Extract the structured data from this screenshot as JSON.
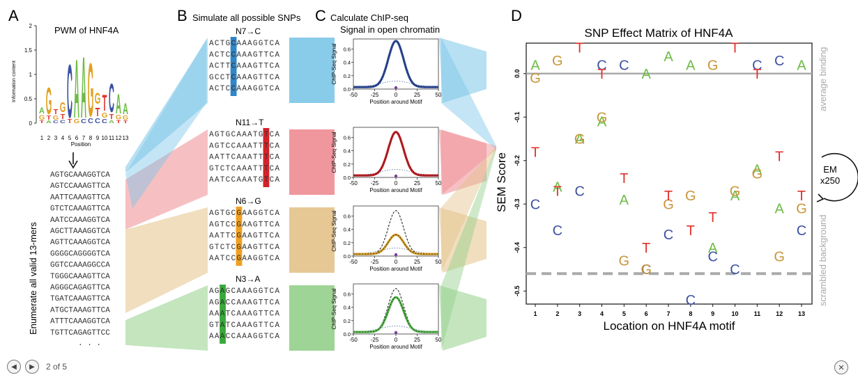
{
  "panelA": {
    "letter": "A",
    "title": "PWM of HNF4A",
    "ylabel": "Information content",
    "xlabel": "Position",
    "yticks": [
      "0",
      "0.5",
      "1",
      "1.5",
      "2"
    ],
    "xticks": [
      "1",
      "2",
      "3",
      "4",
      "5",
      "6",
      "7",
      "8",
      "9",
      "10",
      "11",
      "12",
      "13"
    ],
    "vertical_label": "Enumerate all valid 13-mers",
    "kmers": [
      "AGTGCAAAGGTCA",
      "AGTCCAAAGTTCA",
      "AATTCAAAGTTCA",
      "GTCTCAAAGTTCA",
      "AATCCAAAGGTCA",
      "AGCTTAAAGGTCA",
      "AGTTCAAAGGTCA",
      "GGGGCAGGGGTCA",
      "GGTCCAAAGGCCA",
      "TGGGCAAAGTTCA",
      "AGGGCAGAGTTCA",
      "TGATCAAAGTTCA",
      "ATGCTAAAGTTCA",
      "ATTTCAAAGGTCA",
      "TGTTCAGAGTTCC"
    ],
    "ellipsis": ". . ."
  },
  "panelB": {
    "letter": "B",
    "title": "Simulate all possible SNPs",
    "groups": [
      {
        "label": "N7→C",
        "color": "#2f86c8",
        "seqs": [
          "ACTGCAAAGGTCA",
          "ACTCCAAAGTTCA",
          "ACTTCAAAGTTCA",
          "GCCTCAAAGTTCA",
          "ACTCCAAAGGTCA"
        ]
      },
      {
        "label": "N11→T",
        "color": "#d3222a",
        "seqs": [
          "AGTGCAAATGTCA",
          "AGTCCAAATTTCA",
          "AATTCAAATTTCA",
          "GTCTCAAATTTCA",
          "AATCCAAATGTCA"
        ]
      },
      {
        "label": "N6→G",
        "color": "#f0a020",
        "seqs": [
          "AGTGCGAAGGTCA",
          "AGTCCGAAGTTCA",
          "AATTCGAAGTTCA",
          "GTCTCGAAGTTCA",
          "AATCCGAAGGTCA"
        ]
      },
      {
        "label": "N3→A",
        "color": "#3aa83a",
        "seqs": [
          "AGAGCAAAGGTCA",
          "AGACCAAAGTTCA",
          "AAATCAAAGTTCA",
          "GTATCAAAGTTCA",
          "AAACCAAAGGTCA"
        ]
      }
    ]
  },
  "panelC": {
    "letter": "C",
    "title_line1": "Calculate ChIP-seq",
    "title_line2": "Signal in open chromatin",
    "ylabel": "ChIP-Seq Signal",
    "xlabel": "Position around Motif",
    "yticks": [
      "0.0",
      "0.2",
      "0.4",
      "0.6"
    ],
    "xticks": [
      "-50",
      "-25",
      "0",
      "25",
      "50"
    ]
  },
  "panelD": {
    "letter": "D",
    "title": "SNP Effect Matrix of HNF4A",
    "ylabel": "SEM Score",
    "xlabel": "Location on HNF4A motif",
    "avg_label": "average binding",
    "bg_label": "scrambled background",
    "em_label_1": "EM",
    "em_label_2": "x250"
  },
  "chart_data": [
    {
      "type": "line",
      "title": "",
      "xlabel": "Position around Motif",
      "ylabel": "ChIP-Seq Signal",
      "xlim": [
        -50,
        50
      ],
      "ylim": [
        0,
        0.75
      ],
      "series": [
        {
          "name": "N7→C",
          "peak": 0.72,
          "reference_peak": 0.72,
          "color": "#2b4a9c"
        },
        {
          "name": "N11→T",
          "peak": 0.68,
          "reference_peak": 0.68,
          "color": "#c41e24"
        },
        {
          "name": "N6→G",
          "peak": 0.32,
          "reference_peak": 0.68,
          "color": "#d19a22"
        },
        {
          "name": "N3→A",
          "peak": 0.55,
          "reference_peak": 0.68,
          "color": "#52b548"
        }
      ]
    },
    {
      "type": "scatter",
      "title": "SNP Effect Matrix of HNF4A",
      "xlabel": "Location on HNF4A motif",
      "ylabel": "SEM Score",
      "xlim": [
        1,
        13
      ],
      "ylim": [
        -0.5,
        0.07
      ],
      "categories": [
        "1",
        "2",
        "3",
        "4",
        "5",
        "6",
        "7",
        "8",
        "9",
        "10",
        "11",
        "12",
        "13"
      ],
      "yticks": [
        0.0,
        -0.1,
        -0.2,
        -0.3,
        -0.4,
        -0.5
      ],
      "reference_lines": [
        {
          "label": "average binding",
          "y": 0.0
        },
        {
          "label": "scrambled background",
          "y": -0.46
        }
      ],
      "series": [
        {
          "name": "A",
          "color": "#6dbb45",
          "values": [
            0.02,
            -0.26,
            -0.15,
            -0.11,
            -0.29,
            0.0,
            0.04,
            0.02,
            -0.4,
            -0.28,
            -0.22,
            -0.31,
            0.02
          ]
        },
        {
          "name": "C",
          "color": "#3d51a3",
          "values": [
            -0.3,
            -0.36,
            -0.27,
            0.02,
            0.02,
            -0.45,
            -0.37,
            -0.52,
            -0.42,
            -0.45,
            0.02,
            0.03,
            -0.36
          ]
        },
        {
          "name": "G",
          "color": "#c8953a",
          "values": [
            -0.01,
            0.03,
            -0.15,
            -0.1,
            -0.43,
            -0.45,
            -0.3,
            -0.28,
            0.02,
            -0.27,
            -0.23,
            -0.42,
            -0.31
          ]
        },
        {
          "name": "T",
          "color": "#e0322c",
          "values": [
            -0.18,
            -0.27,
            0.06,
            0.0,
            -0.24,
            -0.4,
            -0.28,
            -0.36,
            -0.33,
            0.06,
            -0.0,
            -0.19,
            -0.28
          ]
        }
      ]
    }
  ],
  "footer": {
    "pager": "2 of 5",
    "prev_icon": "◀",
    "next_icon": "▶",
    "close_icon": "✕"
  }
}
